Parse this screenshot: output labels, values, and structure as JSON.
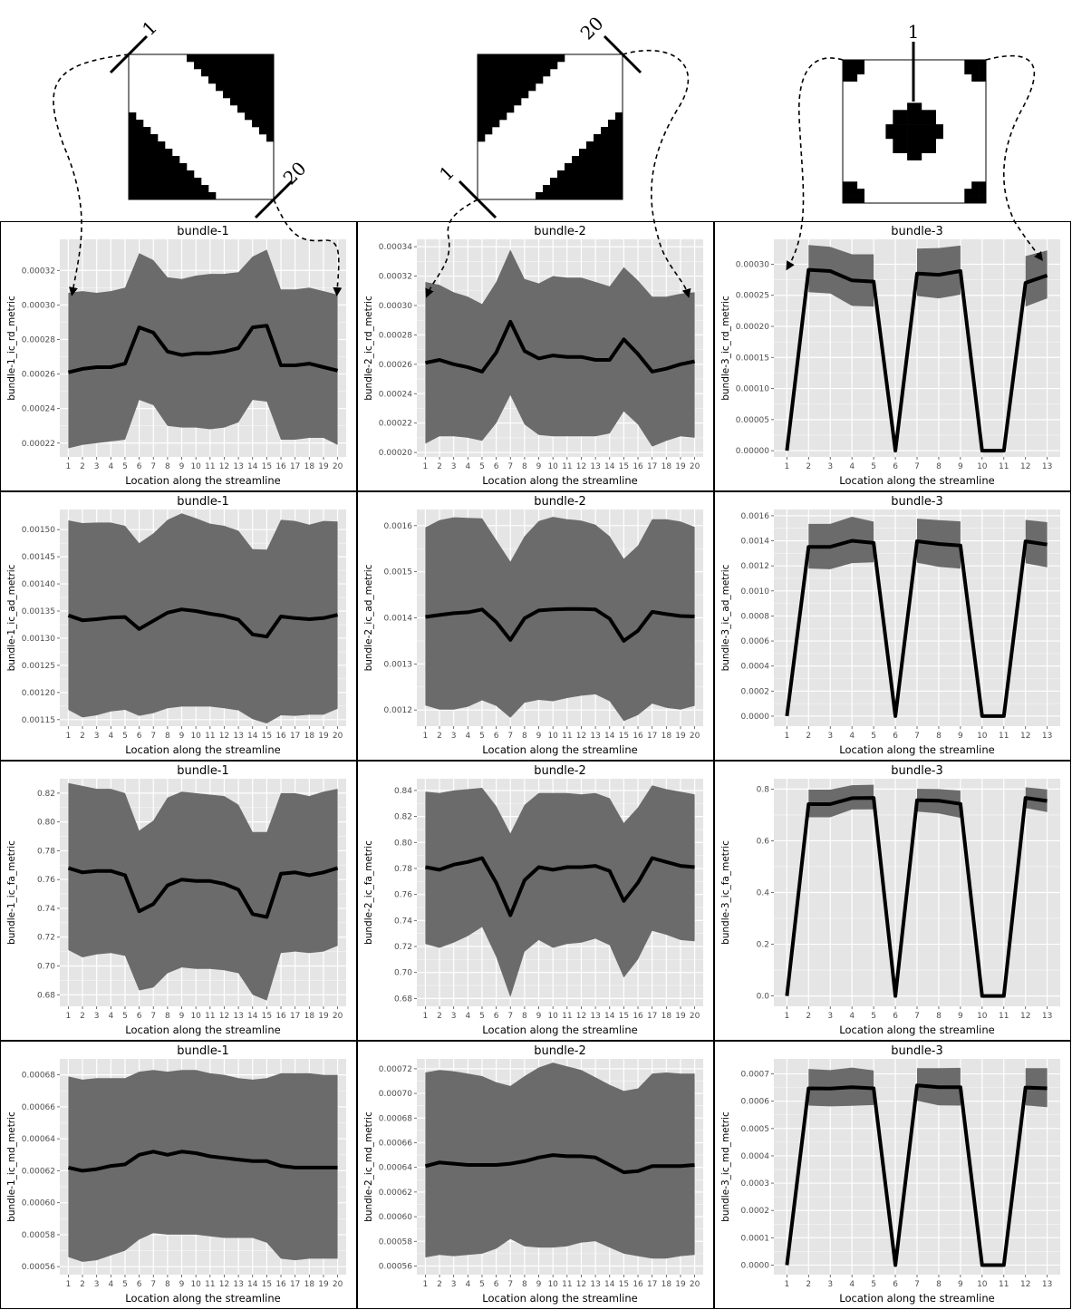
{
  "diagrams": [
    {
      "label_a": "1",
      "label_b": "20"
    },
    {
      "label_a": "20",
      "label_b": "1"
    },
    {
      "label_a": "1"
    }
  ],
  "colors": {
    "panel_bg": "#e5e5e5",
    "grid": "#ffffff",
    "band": "#6b6b6b",
    "line": "#000000",
    "frame": "#000000"
  },
  "chart_data": [
    {
      "type": "line",
      "title": "bundle-1",
      "xlabel": "Location along the streamline",
      "ylabel": "bundle-1_ic_rd_metric",
      "x": [
        1,
        2,
        3,
        4,
        5,
        6,
        7,
        8,
        9,
        10,
        11,
        12,
        13,
        14,
        15,
        16,
        17,
        18,
        19,
        20
      ],
      "ylim": [
        0.000212,
        0.000338
      ],
      "yticks": [
        "0.00022",
        "0.00024",
        "0.00026",
        "0.00028",
        "0.00030",
        "0.00032"
      ],
      "mean": [
        0.000261,
        0.000263,
        0.000264,
        0.000264,
        0.000266,
        0.000287,
        0.000284,
        0.000273,
        0.000271,
        0.000272,
        0.000272,
        0.000273,
        0.000275,
        0.000287,
        0.000288,
        0.000265,
        0.000265,
        0.000266,
        0.000264,
        0.000262
      ],
      "upper": [
        0.000307,
        0.000308,
        0.000307,
        0.000308,
        0.00031,
        0.00033,
        0.000326,
        0.000316,
        0.000315,
        0.000317,
        0.000318,
        0.000318,
        0.000319,
        0.000328,
        0.000332,
        0.000309,
        0.000309,
        0.00031,
        0.000308,
        0.000306
      ],
      "lower": [
        0.000217,
        0.000219,
        0.00022,
        0.000221,
        0.000222,
        0.000245,
        0.000242,
        0.00023,
        0.000229,
        0.000229,
        0.000228,
        0.000229,
        0.000232,
        0.000245,
        0.000244,
        0.000222,
        0.000222,
        0.000223,
        0.000223,
        0.000219
      ]
    },
    {
      "type": "line",
      "title": "bundle-2",
      "xlabel": "Location along the streamline",
      "ylabel": "bundle-2_ic_rd_metric",
      "x": [
        1,
        2,
        3,
        4,
        5,
        6,
        7,
        8,
        9,
        10,
        11,
        12,
        13,
        14,
        15,
        16,
        17,
        18,
        19,
        20
      ],
      "ylim": [
        0.000197,
        0.000345
      ],
      "yticks": [
        "0.00020",
        "0.00022",
        "0.00024",
        "0.00026",
        "0.00028",
        "0.00030",
        "0.00032",
        "0.00034"
      ],
      "mean": [
        0.000261,
        0.000263,
        0.00026,
        0.000258,
        0.000255,
        0.000268,
        0.000289,
        0.000269,
        0.000264,
        0.000266,
        0.000265,
        0.000265,
        0.000263,
        0.000263,
        0.000277,
        0.000267,
        0.000255,
        0.000257,
        0.00026,
        0.000262
      ],
      "upper": [
        0.000316,
        0.000314,
        0.000309,
        0.000306,
        0.000301,
        0.000316,
        0.000338,
        0.000318,
        0.000315,
        0.00032,
        0.000319,
        0.000319,
        0.000316,
        0.000313,
        0.000326,
        0.000317,
        0.000306,
        0.000306,
        0.000308,
        0.000309
      ],
      "lower": [
        0.000206,
        0.000211,
        0.000211,
        0.00021,
        0.000208,
        0.00022,
        0.000239,
        0.000219,
        0.000212,
        0.000211,
        0.000211,
        0.000211,
        0.000211,
        0.000213,
        0.000228,
        0.000219,
        0.000204,
        0.000208,
        0.000211,
        0.00021
      ]
    },
    {
      "type": "line",
      "title": "bundle-3",
      "xlabel": "Location along the streamline",
      "ylabel": "bundle-3_ic_rd_metric",
      "x": [
        1,
        2,
        3,
        4,
        5,
        6,
        7,
        8,
        9,
        10,
        11,
        12,
        13
      ],
      "ylim": [
        -1e-05,
        0.00034
      ],
      "yticks": [
        "0.00000",
        "0.00005",
        "0.00010",
        "0.00015",
        "0.00020",
        "0.00025",
        "0.00030"
      ],
      "mean": [
        0,
        0.000291,
        0.000289,
        0.000274,
        0.000272,
        0,
        0.000285,
        0.000283,
        0.000289,
        0,
        0,
        0.00027,
        0.000282
      ],
      "upper": [
        null,
        0.000331,
        0.000328,
        0.000316,
        0.000316,
        null,
        0.000325,
        0.000326,
        0.00033,
        null,
        null,
        0.000313,
        0.000322
      ],
      "lower": [
        null,
        0.000255,
        0.000253,
        0.000233,
        0.000232,
        null,
        0.000249,
        0.000245,
        0.000251,
        null,
        null,
        0.000232,
        0.000245
      ]
    },
    {
      "type": "line",
      "title": "bundle-1",
      "xlabel": "Location along the streamline",
      "ylabel": "bundle-1_ic_ad_metric",
      "x": [
        1,
        2,
        3,
        4,
        5,
        6,
        7,
        8,
        9,
        10,
        11,
        12,
        13,
        14,
        15,
        16,
        17,
        18,
        19,
        20
      ],
      "ylim": [
        0.001138,
        0.001537
      ],
      "yticks": [
        "0.00115",
        "0.00120",
        "0.00125",
        "0.00130",
        "0.00135",
        "0.00140",
        "0.00145",
        "0.00150"
      ],
      "mean": [
        0.001342,
        0.001333,
        0.001335,
        0.001338,
        0.001339,
        0.001317,
        0.001332,
        0.001347,
        0.001353,
        0.00135,
        0.001345,
        0.001341,
        0.001334,
        0.001307,
        0.001303,
        0.00134,
        0.001337,
        0.001335,
        0.001337,
        0.001343
      ],
      "upper": [
        0.001517,
        0.001512,
        0.001513,
        0.001513,
        0.001507,
        0.001475,
        0.001493,
        0.001518,
        0.00153,
        0.001521,
        0.001511,
        0.001507,
        0.001498,
        0.001464,
        0.001463,
        0.001518,
        0.001516,
        0.001509,
        0.001516,
        0.001515
      ],
      "lower": [
        0.001168,
        0.001154,
        0.001158,
        0.001165,
        0.001168,
        0.001157,
        0.001162,
        0.001171,
        0.001174,
        0.001174,
        0.001174,
        0.001171,
        0.001167,
        0.001151,
        0.001143,
        0.001158,
        0.001157,
        0.001159,
        0.001159,
        0.00117
      ]
    },
    {
      "type": "line",
      "title": "bundle-2",
      "xlabel": "Location along the streamline",
      "ylabel": "bundle-2_ic_ad_metric",
      "x": [
        1,
        2,
        3,
        4,
        5,
        6,
        7,
        8,
        9,
        10,
        11,
        12,
        13,
        14,
        15,
        16,
        17,
        18,
        19,
        20
      ],
      "ylim": [
        0.001165,
        0.001635
      ],
      "yticks": [
        "0.0012",
        "0.0013",
        "0.0014",
        "0.0015",
        "0.0016"
      ],
      "mean": [
        0.001402,
        0.001406,
        0.00141,
        0.001412,
        0.001418,
        0.001391,
        0.001352,
        0.001399,
        0.001416,
        0.001418,
        0.001419,
        0.001419,
        0.001418,
        0.001398,
        0.00135,
        0.001372,
        0.001413,
        0.001408,
        0.001404,
        0.001403
      ],
      "upper": [
        0.001596,
        0.001612,
        0.001618,
        0.001617,
        0.001616,
        0.001569,
        0.001522,
        0.001577,
        0.00161,
        0.001619,
        0.001614,
        0.001611,
        0.001602,
        0.001577,
        0.001528,
        0.001557,
        0.001614,
        0.001614,
        0.001609,
        0.001597
      ],
      "lower": [
        0.00121,
        0.001201,
        0.001201,
        0.001207,
        0.001221,
        0.001209,
        0.001183,
        0.001216,
        0.001222,
        0.001219,
        0.001226,
        0.001231,
        0.001234,
        0.001219,
        0.001176,
        0.001189,
        0.001214,
        0.001205,
        0.001201,
        0.001209
      ]
    },
    {
      "type": "line",
      "title": "bundle-3",
      "xlabel": "Location along the streamline",
      "ylabel": "bundle-3_ic_ad_metric",
      "x": [
        1,
        2,
        3,
        4,
        5,
        6,
        7,
        8,
        9,
        10,
        11,
        12,
        13
      ],
      "ylim": [
        -8e-05,
        0.00165
      ],
      "yticks": [
        "0.0000",
        "0.0002",
        "0.0004",
        "0.0006",
        "0.0008",
        "0.0010",
        "0.0012",
        "0.0014",
        "0.0016"
      ],
      "mean": [
        0,
        0.001352,
        0.001352,
        0.0014,
        0.001383,
        0,
        0.001397,
        0.001375,
        0.001362,
        0,
        0,
        0.001396,
        0.00137
      ],
      "upper": [
        null,
        0.001535,
        0.001535,
        0.001592,
        0.001553,
        null,
        0.001577,
        0.001565,
        0.001555,
        null,
        null,
        0.001567,
        0.001549
      ],
      "lower": [
        null,
        0.001179,
        0.001173,
        0.001222,
        0.001229,
        null,
        0.001226,
        0.001192,
        0.001178,
        null,
        null,
        0.001221,
        0.001189
      ]
    },
    {
      "type": "line",
      "title": "bundle-1",
      "xlabel": "Location along the streamline",
      "ylabel": "bundle-1_ic_fa_metric",
      "x": [
        1,
        2,
        3,
        4,
        5,
        6,
        7,
        8,
        9,
        10,
        11,
        12,
        13,
        14,
        15,
        16,
        17,
        18,
        19,
        20
      ],
      "ylim": [
        0.672,
        0.83
      ],
      "yticks": [
        "0.68",
        "0.70",
        "0.72",
        "0.74",
        "0.76",
        "0.78",
        "0.80",
        "0.82"
      ],
      "mean": [
        0.768,
        0.765,
        0.766,
        0.766,
        0.763,
        0.738,
        0.743,
        0.756,
        0.76,
        0.759,
        0.759,
        0.757,
        0.753,
        0.736,
        0.734,
        0.764,
        0.765,
        0.763,
        0.765,
        0.768
      ],
      "upper": [
        0.827,
        0.825,
        0.823,
        0.823,
        0.82,
        0.794,
        0.801,
        0.817,
        0.821,
        0.82,
        0.819,
        0.818,
        0.812,
        0.793,
        0.793,
        0.82,
        0.82,
        0.818,
        0.821,
        0.823
      ],
      "lower": [
        0.711,
        0.706,
        0.708,
        0.709,
        0.707,
        0.683,
        0.685,
        0.695,
        0.699,
        0.698,
        0.698,
        0.697,
        0.695,
        0.68,
        0.676,
        0.709,
        0.71,
        0.709,
        0.71,
        0.714
      ]
    },
    {
      "type": "line",
      "title": "bundle-2",
      "xlabel": "Location along the streamline",
      "ylabel": "bundle-2_ic_fa_metric",
      "x": [
        1,
        2,
        3,
        4,
        5,
        6,
        7,
        8,
        9,
        10,
        11,
        12,
        13,
        14,
        15,
        16,
        17,
        18,
        19,
        20
      ],
      "ylim": [
        0.674,
        0.849
      ],
      "yticks": [
        "0.68",
        "0.70",
        "0.72",
        "0.74",
        "0.76",
        "0.78",
        "0.80",
        "0.82",
        "0.84"
      ],
      "mean": [
        0.781,
        0.779,
        0.783,
        0.785,
        0.788,
        0.769,
        0.744,
        0.771,
        0.781,
        0.779,
        0.781,
        0.781,
        0.782,
        0.778,
        0.755,
        0.769,
        0.788,
        0.785,
        0.782,
        0.781
      ],
      "upper": [
        0.839,
        0.838,
        0.84,
        0.841,
        0.842,
        0.828,
        0.807,
        0.829,
        0.838,
        0.838,
        0.838,
        0.837,
        0.838,
        0.834,
        0.815,
        0.827,
        0.844,
        0.841,
        0.839,
        0.837
      ],
      "lower": [
        0.722,
        0.719,
        0.723,
        0.728,
        0.735,
        0.712,
        0.681,
        0.716,
        0.725,
        0.719,
        0.722,
        0.723,
        0.726,
        0.721,
        0.696,
        0.71,
        0.732,
        0.729,
        0.725,
        0.724
      ]
    },
    {
      "type": "line",
      "title": "bundle-3",
      "xlabel": "Location along the streamline",
      "ylabel": "bundle-3_ic_fa_metric",
      "x": [
        1,
        2,
        3,
        4,
        5,
        6,
        7,
        8,
        9,
        10,
        11,
        12,
        13
      ],
      "ylim": [
        -0.04,
        0.84
      ],
      "yticks": [
        "0.0",
        "0.2",
        "0.4",
        "0.6",
        "0.8"
      ],
      "mean": [
        0,
        0.742,
        0.742,
        0.765,
        0.766,
        0,
        0.757,
        0.755,
        0.743,
        0,
        0,
        0.766,
        0.754
      ],
      "upper": [
        null,
        0.798,
        0.798,
        0.815,
        0.817,
        null,
        0.801,
        0.8,
        0.794,
        null,
        null,
        0.807,
        0.799
      ],
      "lower": [
        null,
        0.691,
        0.691,
        0.721,
        0.722,
        null,
        0.713,
        0.706,
        0.689,
        null,
        null,
        0.727,
        0.711
      ]
    },
    {
      "type": "line",
      "title": "bundle-1",
      "xlabel": "Location along the streamline",
      "ylabel": "bundle-1_ic_md_metric",
      "x": [
        1,
        2,
        3,
        4,
        5,
        6,
        7,
        8,
        9,
        10,
        11,
        12,
        13,
        14,
        15,
        16,
        17,
        18,
        19,
        20
      ],
      "ylim": [
        0.000555,
        0.00069
      ],
      "yticks": [
        "0.00056",
        "0.00058",
        "0.00060",
        "0.00062",
        "0.00064",
        "0.00066",
        "0.00068"
      ],
      "mean": [
        0.000622,
        0.00062,
        0.000621,
        0.000623,
        0.000624,
        0.00063,
        0.000632,
        0.00063,
        0.000632,
        0.000631,
        0.000629,
        0.000628,
        0.000627,
        0.000626,
        0.000626,
        0.000623,
        0.000622,
        0.000622,
        0.000622,
        0.000622
      ],
      "upper": [
        0.000679,
        0.000677,
        0.000678,
        0.000678,
        0.000678,
        0.000682,
        0.000683,
        0.000682,
        0.000683,
        0.000683,
        0.000681,
        0.00068,
        0.000678,
        0.000677,
        0.000678,
        0.000681,
        0.000681,
        0.000681,
        0.00068,
        0.00068
      ],
      "lower": [
        0.000566,
        0.000563,
        0.000564,
        0.000567,
        0.00057,
        0.000577,
        0.000581,
        0.00058,
        0.00058,
        0.00058,
        0.000579,
        0.000578,
        0.000578,
        0.000578,
        0.000575,
        0.000565,
        0.000564,
        0.000565,
        0.000565,
        0.000565
      ]
    },
    {
      "type": "line",
      "title": "bundle-2",
      "xlabel": "Location along the streamline",
      "ylabel": "bundle-2_ic_md_metric",
      "x": [
        1,
        2,
        3,
        4,
        5,
        6,
        7,
        8,
        9,
        10,
        11,
        12,
        13,
        14,
        15,
        16,
        17,
        18,
        19,
        20
      ],
      "ylim": [
        0.000553,
        0.000728
      ],
      "yticks": [
        "0.00056",
        "0.00058",
        "0.00060",
        "0.00062",
        "0.00064",
        "0.00066",
        "0.00068",
        "0.00070",
        "0.00072"
      ],
      "mean": [
        0.000641,
        0.000644,
        0.000643,
        0.000642,
        0.000642,
        0.000642,
        0.000643,
        0.000645,
        0.000648,
        0.00065,
        0.000649,
        0.000649,
        0.000648,
        0.000642,
        0.000636,
        0.000637,
        0.000641,
        0.000641,
        0.000641,
        0.000642
      ],
      "upper": [
        0.000717,
        0.000719,
        0.000718,
        0.000716,
        0.000714,
        0.000709,
        0.000706,
        0.000714,
        0.000721,
        0.000725,
        0.000722,
        0.000719,
        0.000713,
        0.000707,
        0.000702,
        0.000704,
        0.000716,
        0.000717,
        0.000716,
        0.000716
      ],
      "lower": [
        0.000567,
        0.000569,
        0.000568,
        0.000569,
        0.00057,
        0.000574,
        0.000582,
        0.000576,
        0.000575,
        0.000575,
        0.000576,
        0.000579,
        0.00058,
        0.000575,
        0.00057,
        0.000568,
        0.000566,
        0.000566,
        0.000568,
        0.000569
      ]
    },
    {
      "type": "line",
      "title": "bundle-3",
      "xlabel": "Location along the streamline",
      "ylabel": "bundle-3_ic_md_metric",
      "x": [
        1,
        2,
        3,
        4,
        5,
        6,
        7,
        8,
        9,
        10,
        11,
        12,
        13
      ],
      "ylim": [
        -3.5e-05,
        0.000755
      ],
      "yticks": [
        "0.0000",
        "0.0001",
        "0.0002",
        "0.0003",
        "0.0004",
        "0.0005",
        "0.0006",
        "0.0007"
      ],
      "mean": [
        0,
        0.000647,
        0.000646,
        0.000651,
        0.000647,
        0,
        0.000658,
        0.000651,
        0.000651,
        0,
        0,
        0.00065,
        0.000647
      ],
      "upper": [
        null,
        0.000718,
        0.000714,
        0.000723,
        0.000713,
        null,
        0.000721,
        0.000721,
        0.000722,
        null,
        null,
        0.000721,
        0.000721
      ],
      "lower": [
        null,
        0.000584,
        0.000581,
        0.000583,
        0.000586,
        null,
        0.000602,
        0.000585,
        0.000584,
        null,
        null,
        0.000585,
        0.000578
      ]
    }
  ]
}
